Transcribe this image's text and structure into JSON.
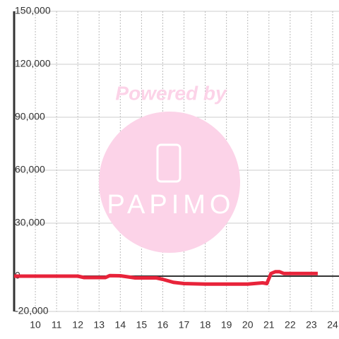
{
  "chart_data": {
    "type": "line",
    "annotations": [
      "Powered by",
      "PAPIMO"
    ],
    "x": [
      9,
      12,
      12.3,
      13.3,
      13.5,
      14,
      14.3,
      14.7,
      15.7,
      16,
      16.5,
      17,
      18,
      19,
      20,
      20.7,
      20.9,
      21.1,
      21.3,
      21.5,
      21.7,
      22,
      23,
      23.3
    ],
    "series": [
      {
        "color": "#e8233a",
        "values": [
          0,
          0,
          -800,
          -800,
          300,
          200,
          -300,
          -1000,
          -1000,
          -1800,
          -3500,
          -4200,
          -4500,
          -4500,
          -4500,
          -3800,
          -4200,
          1500,
          2500,
          2500,
          1500,
          1500,
          1500,
          1500
        ]
      }
    ],
    "xlim": [
      9,
      24.3
    ],
    "xticks": [
      10,
      11,
      12,
      13,
      14,
      15,
      16,
      17,
      18,
      19,
      20,
      21,
      22,
      23,
      24
    ],
    "ylim": [
      -20000,
      150000
    ],
    "yticks": [
      {
        "value": -20000,
        "label": "-20,000"
      },
      0,
      {
        "value": 30000,
        "label": "30,000"
      },
      {
        "value": 60000,
        "label": "60,000"
      },
      {
        "value": 90000,
        "label": "90,000"
      },
      {
        "value": 120000,
        "label": "120,000"
      },
      {
        "value": 150000,
        "label": "150,000"
      }
    ],
    "grid": true
  }
}
